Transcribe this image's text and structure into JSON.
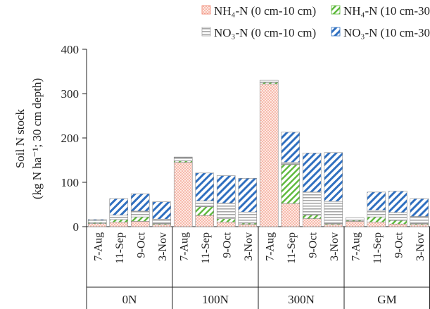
{
  "chart_data": {
    "type": "bar",
    "stacked": true,
    "ylabel_lines": [
      "Soil N stock",
      "(kg N ha⁻¹; 30 cm depth)"
    ],
    "ylim": [
      0,
      400
    ],
    "yticks": [
      0,
      100,
      200,
      300,
      400
    ],
    "groups": [
      "0N",
      "100N",
      "300N",
      "GM"
    ],
    "dates": [
      "7-Aug",
      "11-Sep",
      "9-Oct",
      "3-Nov"
    ],
    "series": [
      {
        "name": "NH₄-N (0 cm-10 cm)",
        "pattern": "dots",
        "color": "#f0836e",
        "values": [
          [
            7,
            10,
            12,
            5
          ],
          [
            145,
            25,
            10,
            5
          ],
          [
            322,
            52,
            18,
            5
          ],
          [
            12,
            10,
            6,
            5
          ]
        ]
      },
      {
        "name": "NH₄-N (10 cm-30 cm)",
        "pattern": "diag-right",
        "color": "#5cb83a",
        "values": [
          [
            2,
            6,
            10,
            2
          ],
          [
            3,
            20,
            8,
            3
          ],
          [
            3,
            88,
            8,
            2
          ],
          [
            2,
            12,
            8,
            2
          ]
        ]
      },
      {
        "name": "NO₃-N (0 cm-10 cm)",
        "pattern": "hlines",
        "color": "#a8a8a8",
        "values": [
          [
            5,
            10,
            13,
            10
          ],
          [
            8,
            13,
            35,
            25
          ],
          [
            5,
            5,
            52,
            50
          ],
          [
            6,
            15,
            18,
            16
          ]
        ]
      },
      {
        "name": "NO₃-N (10 cm-30 cm)",
        "pattern": "diag-left",
        "color": "#3070c0",
        "values": [
          [
            2,
            37,
            39,
            39
          ],
          [
            1,
            63,
            62,
            76
          ],
          [
            0,
            68,
            88,
            110
          ],
          [
            0,
            41,
            48,
            40
          ]
        ]
      }
    ]
  }
}
